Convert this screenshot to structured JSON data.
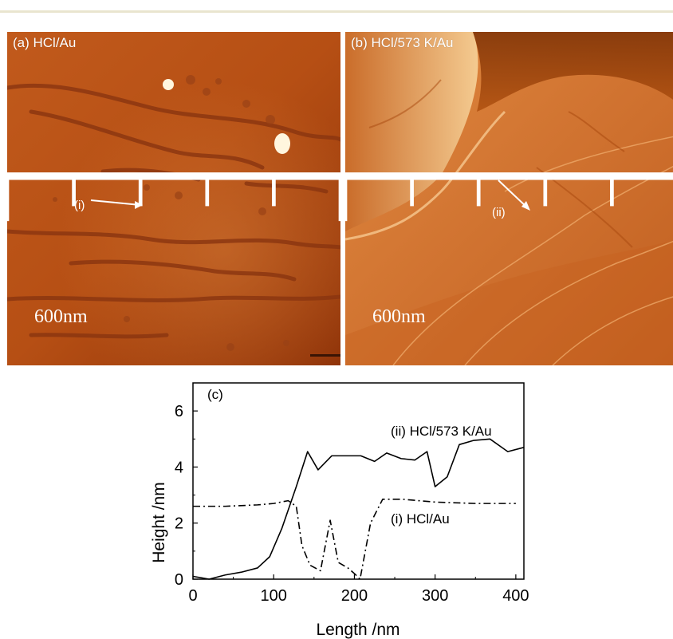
{
  "panels": {
    "a": {
      "label": "(a) HCl/Au",
      "scale": "600nm",
      "pointer": "(i)"
    },
    "b": {
      "label": "(b) HCl/573 K/Au",
      "scale": "600nm",
      "pointer": "(ii)"
    }
  },
  "colors": {
    "afm_light": "#f4c78a",
    "afm_mid": "#c8621c",
    "afm_dark": "#7a2e08"
  },
  "chart_data": {
    "type": "line",
    "panel_label": "(c)",
    "xlabel": "Length /nm",
    "ylabel": "Height /nm",
    "xlim": [
      0,
      410
    ],
    "ylim": [
      0,
      7
    ],
    "xticks": [
      0,
      100,
      200,
      300,
      400
    ],
    "yticks": [
      0,
      2,
      4,
      6
    ],
    "series": [
      {
        "name": "(ii) HCl/573 K/Au",
        "style": "solid",
        "x": [
          0,
          20,
          40,
          60,
          80,
          95,
          110,
          128,
          142,
          155,
          172,
          190,
          208,
          225,
          240,
          258,
          275,
          290,
          300,
          315,
          330,
          348,
          368,
          390,
          410
        ],
        "y": [
          0.1,
          0.0,
          0.15,
          0.25,
          0.4,
          0.8,
          1.8,
          3.3,
          4.55,
          3.9,
          4.4,
          4.4,
          4.4,
          4.2,
          4.5,
          4.3,
          4.25,
          4.55,
          3.3,
          3.65,
          4.8,
          4.95,
          5.0,
          4.55,
          4.7
        ]
      },
      {
        "name": "(i) HCl/Au",
        "style": "dashdot",
        "x": [
          0,
          40,
          80,
          100,
          118,
          128,
          135,
          145,
          158,
          170,
          180,
          192,
          200,
          207,
          220,
          235,
          260,
          300,
          350,
          400
        ],
        "y": [
          2.6,
          2.6,
          2.65,
          2.7,
          2.8,
          2.6,
          1.2,
          0.5,
          0.3,
          2.1,
          0.6,
          0.4,
          0.2,
          0.0,
          2.0,
          2.85,
          2.85,
          2.75,
          2.7,
          2.7
        ]
      }
    ]
  }
}
